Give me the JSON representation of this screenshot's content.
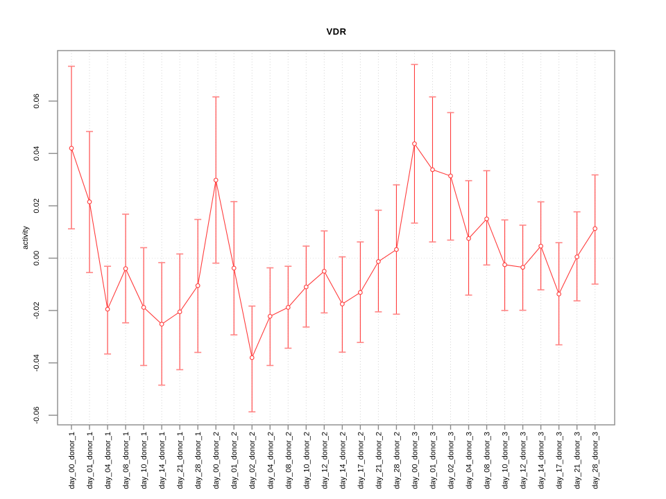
{
  "chart_data": {
    "type": "line",
    "title": "VDR",
    "xlabel": "",
    "ylabel": "activity",
    "legend": "none",
    "grid": "dotted vertical gridline per category, dotted horizontal line at y=0",
    "ylim": [
      -0.065,
      0.079
    ],
    "yticks": [
      -0.06,
      -0.04,
      -0.02,
      0.0,
      0.02,
      0.04,
      0.06
    ],
    "ytick_labels": [
      "-0.06",
      "-0.04",
      "-0.02",
      "0.00",
      "0.02",
      "0.04",
      "0.06"
    ],
    "categories": [
      "day_00_donor_1",
      "day_01_donor_1",
      "day_04_donor_1",
      "day_08_donor_1",
      "day_10_donor_1",
      "day_14_donor_1",
      "day_21_donor_1",
      "day_28_donor_1",
      "day_00_donor_2",
      "day_01_donor_2",
      "day_02_donor_2",
      "day_04_donor_2",
      "day_08_donor_2",
      "day_10_donor_2",
      "day_12_donor_2",
      "day_14_donor_2",
      "day_17_donor_2",
      "day_21_donor_2",
      "day_28_donor_2",
      "day_00_donor_3",
      "day_01_donor_3",
      "day_02_donor_3",
      "day_04_donor_3",
      "day_08_donor_3",
      "day_10_donor_3",
      "day_12_donor_3",
      "day_14_donor_3",
      "day_17_donor_3",
      "day_21_donor_3",
      "day_28_donor_3"
    ],
    "series": [
      {
        "name": "activity",
        "marker": "open-circle",
        "values": [
          0.042,
          0.0215,
          -0.0195,
          -0.004,
          -0.0188,
          -0.0252,
          -0.0205,
          -0.0105,
          0.0298,
          -0.0038,
          -0.038,
          -0.0222,
          -0.0188,
          -0.011,
          -0.005,
          -0.0175,
          -0.0131,
          -0.0013,
          0.0033,
          0.0437,
          0.0338,
          0.0314,
          0.0075,
          0.015,
          -0.0025,
          -0.0035,
          0.0046,
          -0.0137,
          0.0005,
          0.0113
        ],
        "error_low": [
          0.0112,
          -0.0055,
          -0.0366,
          -0.0247,
          -0.041,
          -0.0485,
          -0.0426,
          -0.036,
          -0.0019,
          -0.0293,
          -0.0587,
          -0.041,
          -0.0344,
          -0.0263,
          -0.0209,
          -0.0359,
          -0.0322,
          -0.0205,
          -0.0214,
          0.0134,
          0.0062,
          0.0069,
          -0.0141,
          -0.0026,
          -0.02,
          -0.0199,
          -0.0121,
          -0.0331,
          -0.0163,
          -0.0099
        ],
        "error_high": [
          0.0733,
          0.0484,
          -0.0031,
          0.0168,
          0.004,
          -0.0017,
          0.0016,
          0.0148,
          0.0616,
          0.0216,
          -0.0183,
          -0.0037,
          -0.0031,
          0.0046,
          0.0104,
          0.0005,
          0.0062,
          0.0183,
          0.028,
          0.074,
          0.0616,
          0.0556,
          0.0296,
          0.0334,
          0.0146,
          0.0126,
          0.0215,
          0.0059,
          0.0177,
          0.0318
        ]
      }
    ],
    "colors": {
      "series": "#ff3b3b",
      "cap": "#ff8585",
      "marker_fill": "#ffffff",
      "grid": "#d4d4d4",
      "zero_line": "#e2e2e2",
      "box": "#8a8a8a",
      "tick": "#8a8a8a",
      "text": "#000000"
    }
  }
}
